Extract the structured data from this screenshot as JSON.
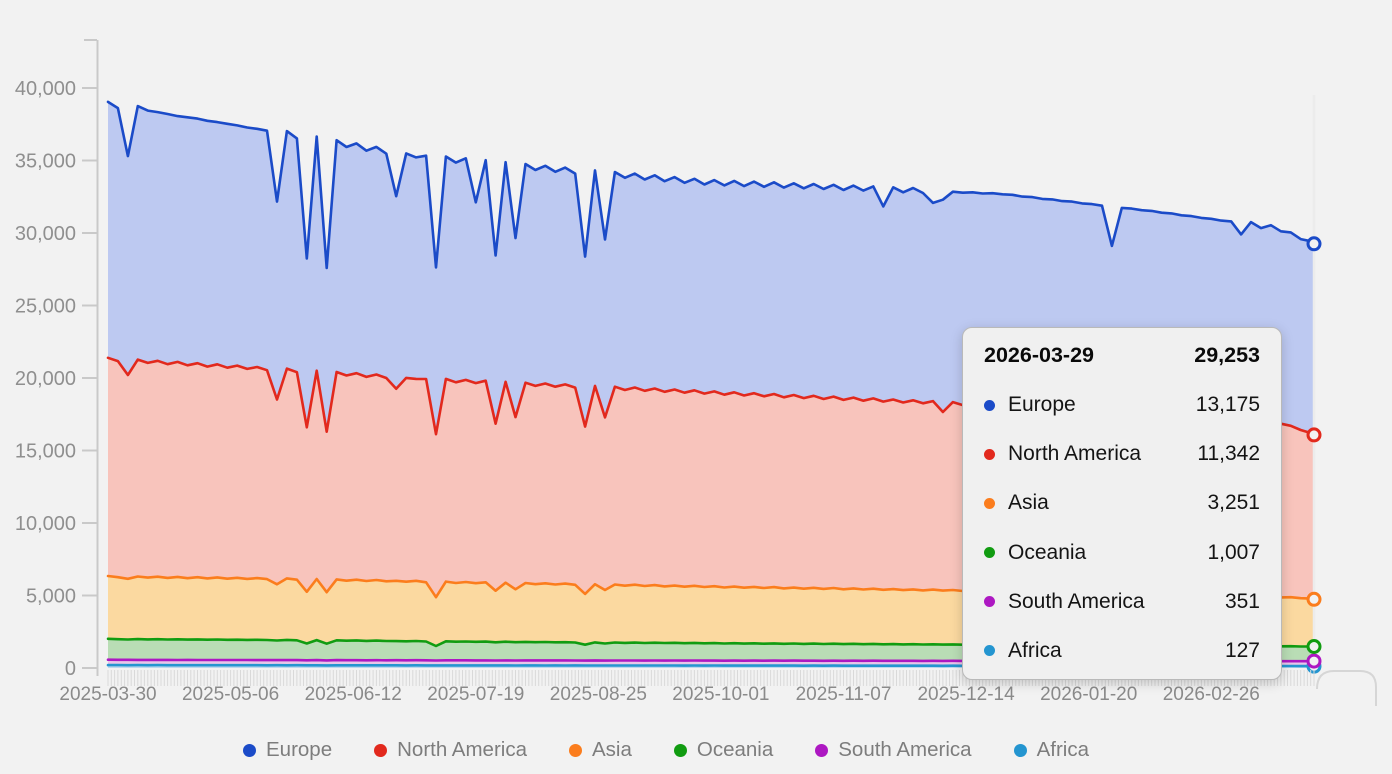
{
  "page": {
    "background": "#f2f2f2"
  },
  "tooltip": {
    "date": "2026-03-29",
    "total": "29,253",
    "rows": [
      {
        "label": "Europe",
        "value": "13,175",
        "color": "#1b4bc8"
      },
      {
        "label": "North America",
        "value": "11,342",
        "color": "#e2291d"
      },
      {
        "label": "Asia",
        "value": "3,251",
        "color": "#fb7d1d"
      },
      {
        "label": "Oceania",
        "value": "1,007",
        "color": "#119c11"
      },
      {
        "label": "South America",
        "value": "351",
        "color": "#ad18c2"
      },
      {
        "label": "Africa",
        "value": "127",
        "color": "#2495d0"
      }
    ]
  },
  "legend": {
    "items": [
      {
        "label": "Europe",
        "color": "#1b4bc8"
      },
      {
        "label": "North America",
        "color": "#e2291d"
      },
      {
        "label": "Asia",
        "color": "#fb7d1d"
      },
      {
        "label": "Oceania",
        "color": "#119c11"
      },
      {
        "label": "South America",
        "color": "#ad18c2"
      },
      {
        "label": "Africa",
        "color": "#2495d0"
      }
    ]
  },
  "axes": {
    "y_ticks": [
      "0",
      "5,000",
      "10,000",
      "15,000",
      "20,000",
      "25,000",
      "30,000",
      "35,000",
      "40,000"
    ],
    "y_values": [
      0,
      5000,
      10000,
      15000,
      20000,
      25000,
      30000,
      35000,
      40000
    ],
    "x_ticks": [
      {
        "label": "2025-03-30",
        "day": 0
      },
      {
        "label": "2025-05-06",
        "day": 37
      },
      {
        "label": "2025-06-12",
        "day": 74
      },
      {
        "label": "2025-07-19",
        "day": 111
      },
      {
        "label": "2025-08-25",
        "day": 148
      },
      {
        "label": "2025-10-01",
        "day": 185
      },
      {
        "label": "2025-11-07",
        "day": 222
      },
      {
        "label": "2025-12-14",
        "day": 259
      },
      {
        "label": "2026-01-20",
        "day": 296
      },
      {
        "label": "2026-02-26",
        "day": 333
      }
    ]
  },
  "chart_data": {
    "type": "area",
    "stacked": true,
    "x_start_date": "2025-03-30",
    "x_end_date": "2026-03-29",
    "total_days": 364,
    "sample_step_days": 3,
    "ylim": [
      0,
      43400
    ],
    "cursor_day": 364,
    "series": [
      {
        "name": "Africa",
        "color": "#2495d0",
        "fill": "#bdd8ee",
        "values": [
          200,
          198,
          196,
          199,
          195,
          197,
          194,
          196,
          193,
          195,
          192,
          194,
          191,
          193,
          190,
          192,
          189,
          191,
          188,
          190,
          183,
          189,
          182,
          188,
          185,
          187,
          184,
          186,
          183,
          185,
          182,
          184,
          181,
          176,
          181,
          182,
          179,
          181,
          178,
          177,
          177,
          175,
          176,
          178,
          175,
          177,
          174,
          176,
          170,
          175,
          170,
          174,
          171,
          173,
          170,
          172,
          169,
          171,
          168,
          170,
          167,
          169,
          166,
          168,
          165,
          167,
          164,
          166,
          163,
          165,
          162,
          164,
          161,
          163,
          160,
          162,
          159,
          161,
          158,
          160,
          157,
          159,
          156,
          158,
          155,
          157,
          154,
          156,
          153,
          155,
          152,
          154,
          151,
          153,
          150,
          152,
          149,
          151,
          148,
          150,
          147,
          149,
          146,
          148,
          145,
          147,
          144,
          146,
          143,
          145,
          142,
          144,
          141,
          143,
          140,
          141,
          138,
          139,
          136,
          135,
          132,
          129,
          127
        ]
      },
      {
        "name": "South America",
        "color": "#ad18c2",
        "fill": "#e7c7e9",
        "values": [
          372,
          366,
          369,
          363,
          367,
          361,
          365,
          359,
          363,
          358,
          362,
          357,
          361,
          356,
          360,
          355,
          359,
          354,
          358,
          353,
          345,
          356,
          344,
          355,
          350,
          354,
          349,
          353,
          348,
          352,
          348,
          351,
          347,
          340,
          347,
          346,
          350,
          346,
          349,
          342,
          349,
          341,
          348,
          345,
          348,
          344,
          347,
          344,
          340,
          347,
          341,
          346,
          343,
          346,
          342,
          345,
          342,
          345,
          341,
          344,
          341,
          344,
          340,
          343,
          340,
          343,
          340,
          342,
          339,
          342,
          339,
          342,
          338,
          341,
          338,
          341,
          338,
          340,
          337,
          340,
          337,
          340,
          336,
          339,
          336,
          339,
          336,
          338,
          335,
          338,
          335,
          338,
          335,
          337,
          334,
          337,
          334,
          337,
          334,
          336,
          333,
          336,
          333,
          336,
          333,
          335,
          333,
          335,
          332,
          335,
          332,
          334,
          332,
          334,
          332,
          334,
          331,
          333,
          331,
          333,
          334,
          342,
          351
        ]
      },
      {
        "name": "Oceania",
        "color": "#119c11",
        "fill": "#b9ddb5",
        "values": [
          1440,
          1420,
          1400,
          1430,
          1410,
          1430,
          1405,
          1425,
          1400,
          1420,
          1395,
          1415,
          1390,
          1405,
          1385,
          1400,
          1380,
          1350,
          1390,
          1370,
          1160,
          1380,
          1150,
          1370,
          1345,
          1360,
          1335,
          1350,
          1330,
          1320,
          1310,
          1330,
          1300,
          1000,
          1310,
          1285,
          1300,
          1280,
          1295,
          1250,
          1285,
          1260,
          1275,
          1255,
          1270,
          1250,
          1260,
          1240,
          1100,
          1245,
          1180,
          1240,
          1220,
          1235,
          1215,
          1230,
          1210,
          1220,
          1200,
          1215,
          1195,
          1205,
          1185,
          1200,
          1180,
          1195,
          1175,
          1190,
          1170,
          1180,
          1160,
          1175,
          1155,
          1170,
          1150,
          1165,
          1145,
          1160,
          1140,
          1150,
          1135,
          1145,
          1130,
          1140,
          1125,
          1135,
          1120,
          1130,
          1115,
          1125,
          1110,
          1120,
          1105,
          1115,
          1100,
          1110,
          1095,
          1105,
          1090,
          1100,
          1085,
          1095,
          1080,
          1090,
          1075,
          1085,
          1070,
          1080,
          1065,
          1075,
          1060,
          1070,
          1055,
          1065,
          1050,
          1055,
          1040,
          1045,
          1030,
          1035,
          1020,
          1015,
          1007
        ]
      },
      {
        "name": "Asia",
        "color": "#fb7d1d",
        "fill": "#fbd9a0",
        "values": [
          4330,
          4280,
          4190,
          4320,
          4260,
          4310,
          4250,
          4300,
          4240,
          4290,
          4230,
          4280,
          4220,
          4270,
          4210,
          4250,
          4200,
          3880,
          4240,
          4180,
          3570,
          4210,
          3550,
          4200,
          4140,
          4190,
          4130,
          4180,
          4120,
          4160,
          4110,
          4150,
          4080,
          3370,
          4120,
          4050,
          4100,
          4040,
          4090,
          3560,
          4070,
          3650,
          4060,
          4000,
          4050,
          3990,
          4040,
          3980,
          3500,
          4010,
          3690,
          4000,
          3940,
          3990,
          3930,
          3970,
          3910,
          3950,
          3900,
          3940,
          3880,
          3920,
          3860,
          3900,
          3850,
          3890,
          3840,
          3880,
          3820,
          3860,
          3810,
          3850,
          3800,
          3840,
          3780,
          3820,
          3770,
          3810,
          3760,
          3790,
          3740,
          3780,
          3730,
          3770,
          3720,
          3750,
          3700,
          3740,
          3690,
          3720,
          3670,
          3700,
          3650,
          3680,
          3630,
          3660,
          3610,
          3640,
          3590,
          3620,
          3570,
          3600,
          3550,
          3580,
          3530,
          3560,
          3510,
          3540,
          3490,
          3520,
          3470,
          3500,
          3450,
          3480,
          3430,
          3450,
          3400,
          3420,
          3370,
          3380,
          3330,
          3300,
          3251
        ]
      },
      {
        "name": "North America",
        "color": "#e2291d",
        "fill": "#f8c4bc",
        "values": [
          15050,
          14900,
          14050,
          14960,
          14810,
          14890,
          14740,
          14830,
          14680,
          14760,
          14610,
          14700,
          14550,
          14630,
          14480,
          14560,
          14410,
          12740,
          14470,
          14310,
          11340,
          14370,
          11070,
          14300,
          14150,
          14240,
          14080,
          14170,
          14020,
          13240,
          14060,
          13920,
          14020,
          11240,
          13980,
          13840,
          13940,
          13800,
          13900,
          11520,
          13860,
          11880,
          13820,
          13680,
          13780,
          13640,
          13740,
          13600,
          11540,
          13680,
          11900,
          13640,
          13500,
          13600,
          13460,
          13560,
          13420,
          13520,
          13380,
          13480,
          13340,
          13440,
          13300,
          13400,
          13260,
          13360,
          13220,
          13320,
          13180,
          13280,
          13140,
          13240,
          13100,
          13200,
          13060,
          13160,
          13020,
          13120,
          12980,
          13080,
          12940,
          13040,
          12900,
          13000,
          12320,
          12960,
          12820,
          12920,
          12780,
          12880,
          12740,
          12830,
          12690,
          12780,
          12640,
          12730,
          12580,
          12680,
          12530,
          12620,
          12480,
          12570,
          12430,
          12520,
          12380,
          12470,
          12320,
          12420,
          12270,
          12360,
          12220,
          12310,
          12170,
          12260,
          12110,
          12210,
          12060,
          12150,
          11980,
          11820,
          11600,
          11420,
          11342
        ]
      },
      {
        "name": "Europe",
        "color": "#1b4bc8",
        "fill": "#bdc9f1",
        "values": [
          17650,
          17450,
          15100,
          17480,
          17400,
          17150,
          17250,
          16950,
          17100,
          16870,
          16950,
          16700,
          16820,
          16570,
          16650,
          16430,
          16520,
          13650,
          16380,
          16120,
          11640,
          16150,
          11290,
          15990,
          15760,
          15850,
          15600,
          15700,
          15470,
          13280,
          15480,
          15280,
          15400,
          11500,
          15340,
          15150,
          15280,
          12470,
          15210,
          11600,
          15140,
          12340,
          15080,
          14890,
          15010,
          14820,
          14950,
          14760,
          11720,
          14860,
          12270,
          14810,
          14630,
          14750,
          14570,
          14700,
          14520,
          14650,
          14470,
          14590,
          14420,
          14570,
          14430,
          14580,
          14440,
          14590,
          14450,
          14600,
          14460,
          14600,
          14470,
          14610,
          14480,
          14610,
          14480,
          14620,
          14490,
          14620,
          13460,
          14630,
          14500,
          14640,
          14510,
          13670,
          14640,
          14510,
          14650,
          14520,
          14650,
          14530,
          14660,
          14490,
          14580,
          14410,
          14500,
          14330,
          14430,
          14250,
          14350,
          14170,
          14270,
          11360,
          14190,
          14010,
          14110,
          13930,
          14020,
          13830,
          13920,
          13730,
          13820,
          13620,
          13710,
          13520,
          12840,
          13560,
          13370,
          13450,
          13270,
          13340,
          13160,
          13230,
          13175
        ]
      }
    ]
  }
}
